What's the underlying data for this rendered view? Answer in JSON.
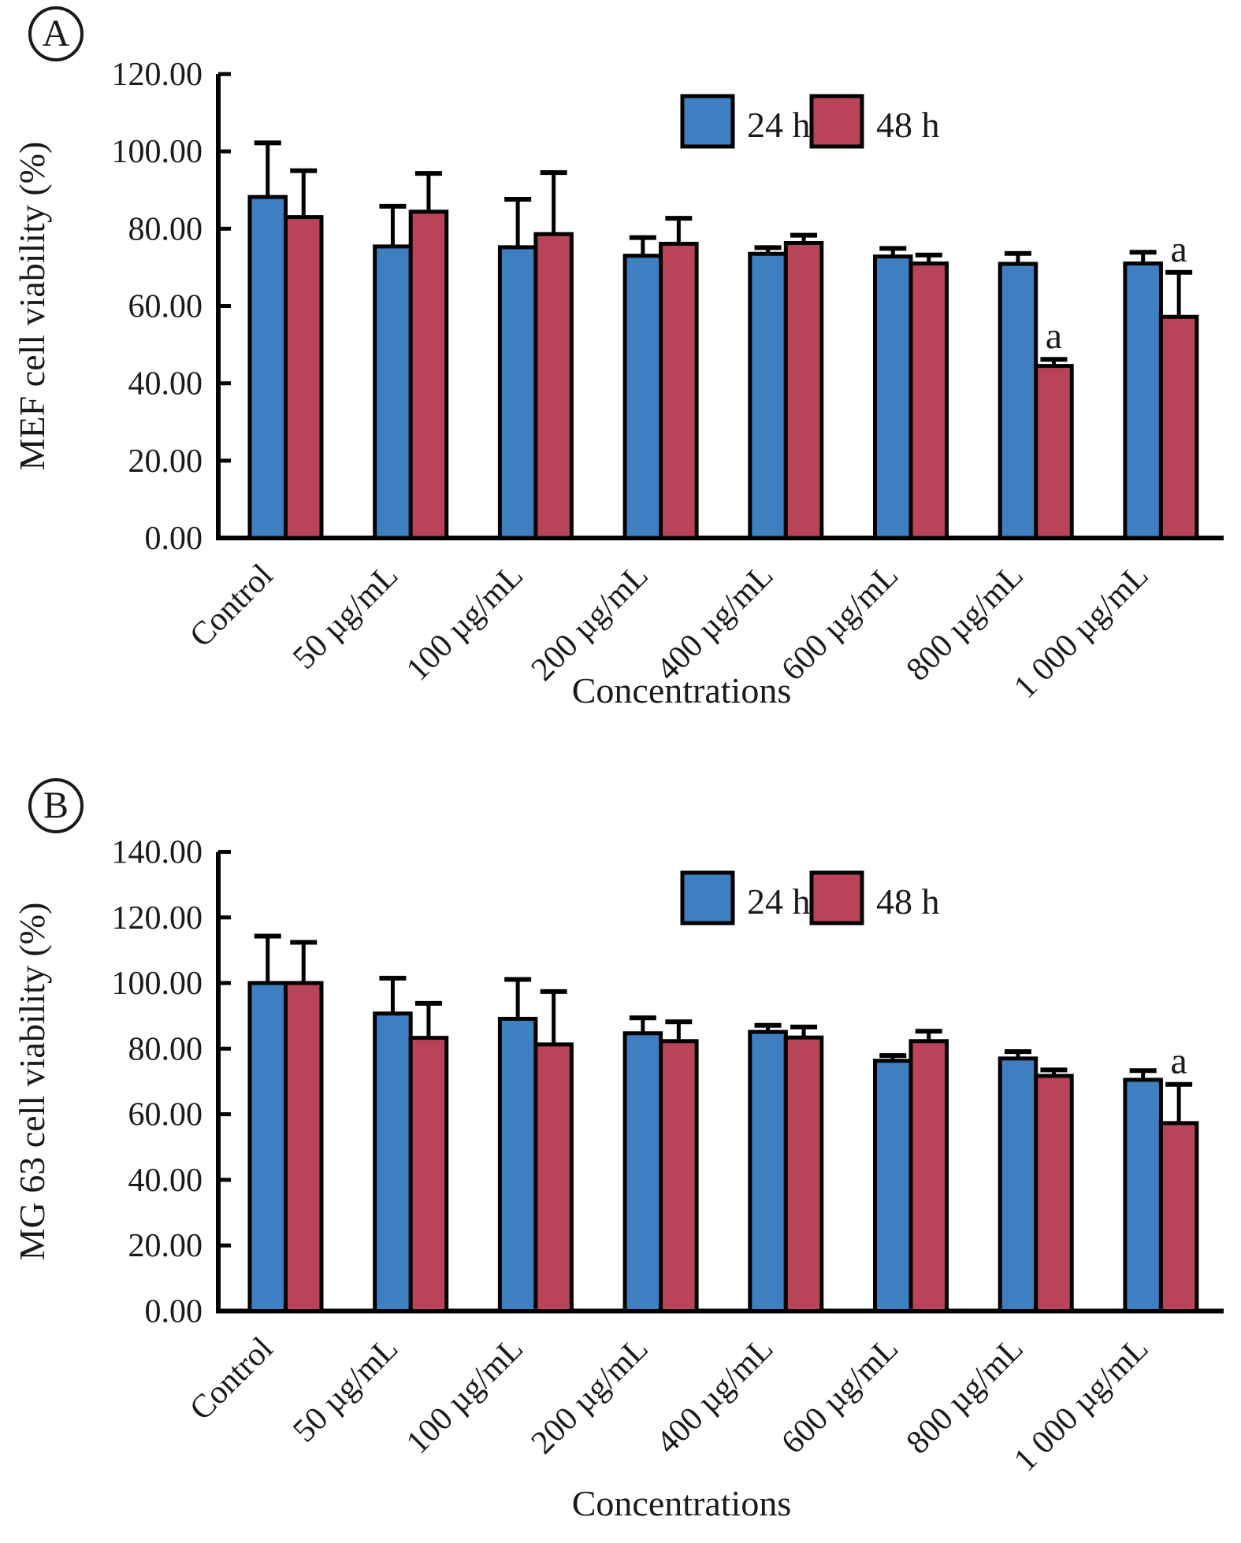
{
  "figure_type": "two-panel grouped bar chart with error bars",
  "chart_data": [
    {
      "type": "bar",
      "panel_label": "A",
      "title": "",
      "xlabel": "Concentrations",
      "ylabel": "MEF cell viability (%)",
      "ylim": [
        0,
        120
      ],
      "ytick_step": 20,
      "yticks": [
        "120.00",
        "100.00",
        "80.00",
        "60.00",
        "40.00",
        "20.00",
        "0.00"
      ],
      "grid": false,
      "legend_position": "top-right",
      "categories": [
        "Control",
        "50 µg/mL",
        "100 µg/mL",
        "200 µg/mL",
        "400 µg/mL",
        "600 µg/mL",
        "800 µg/mL",
        "1 000 µg/mL"
      ],
      "series": [
        {
          "name": "24 h",
          "color": "#3e7fc1",
          "values": [
            88.2,
            75.4,
            75.2,
            73.0,
            73.5,
            72.8,
            70.9,
            71.0
          ],
          "errors": [
            14.0,
            10.4,
            12.4,
            4.7,
            1.6,
            2.1,
            2.7,
            2.9
          ],
          "sig": [
            "",
            "",
            "",
            "",
            "",
            "",
            "",
            ""
          ]
        },
        {
          "name": "48 h",
          "color": "#b94459",
          "values": [
            83.0,
            84.4,
            78.6,
            76.1,
            76.3,
            71.0,
            44.5,
            57.2
          ],
          "errors": [
            12.0,
            9.9,
            15.9,
            6.6,
            2.0,
            2.2,
            1.7,
            11.5
          ],
          "sig": [
            "",
            "",
            "",
            "",
            "",
            "",
            "a",
            "a"
          ]
        }
      ]
    },
    {
      "type": "bar",
      "panel_label": "B",
      "title": "",
      "xlabel": "Concentrations",
      "ylabel": "MG 63 cell viability (%)",
      "ylim": [
        0,
        140
      ],
      "ytick_step": 20,
      "yticks": [
        "140.00",
        "120.00",
        "100.00",
        "80.00",
        "60.00",
        "40.00",
        "20.00",
        "0.00"
      ],
      "grid": false,
      "legend_position": "top-right",
      "categories": [
        "Control",
        "50 µg/mL",
        "100 µg/mL",
        "200 µg/mL",
        "400 µg/mL",
        "600 µg/mL",
        "800 µg/mL",
        "1 000 µg/mL"
      ],
      "series": [
        {
          "name": "24 h",
          "color": "#3e7fc1",
          "values": [
            100.0,
            90.7,
            89.1,
            84.7,
            85.1,
            76.3,
            77.0,
            70.5
          ],
          "errors": [
            14.3,
            10.8,
            12.0,
            4.7,
            2.0,
            1.6,
            2.1,
            2.8
          ],
          "sig": [
            "",
            "",
            "",
            "",
            "",
            "",
            "",
            ""
          ]
        },
        {
          "name": "48 h",
          "color": "#b94459",
          "values": [
            100.0,
            83.3,
            81.3,
            82.3,
            83.4,
            82.3,
            71.7,
            57.3
          ],
          "errors": [
            12.4,
            10.5,
            16.1,
            5.9,
            3.2,
            3.0,
            1.8,
            11.8
          ],
          "sig": [
            "",
            "",
            "",
            "",
            "",
            "",
            "",
            "a"
          ]
        }
      ]
    }
  ],
  "colors": {
    "bar_24h": "#3e7fc1",
    "bar_48h": "#b94459",
    "axis": "#000000",
    "text": "#1a1a1a"
  }
}
